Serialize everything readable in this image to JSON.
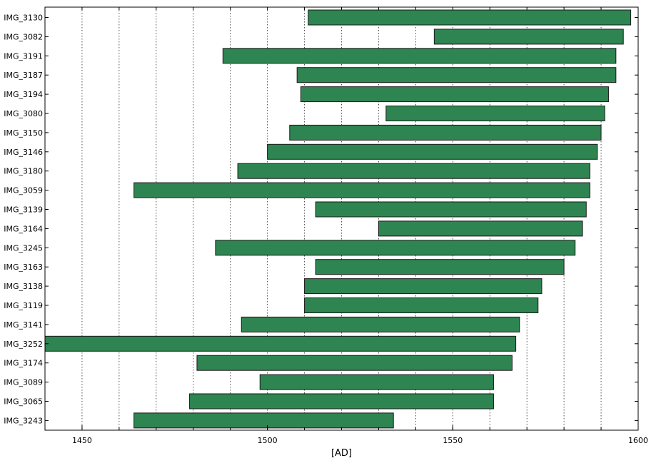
{
  "chart_data": {
    "type": "bar",
    "orientation": "horizontal",
    "xlabel": "[AD]",
    "ylabel": "",
    "title": "",
    "xlim": [
      1440,
      1600
    ],
    "xticks": [
      1450,
      1500,
      1550,
      1600
    ],
    "minor_gridlines": [
      1450,
      1460,
      1470,
      1480,
      1490,
      1500,
      1510,
      1520,
      1530,
      1540,
      1550,
      1560,
      1570,
      1580,
      1590
    ],
    "grid": "dotted vertical",
    "bar_color": "#2e8551",
    "bar_edge_color": "#1a1a1a",
    "bars": [
      {
        "label": "IMG_3130",
        "start": 1511,
        "end": 1598
      },
      {
        "label": "IMG_3082",
        "start": 1545,
        "end": 1596
      },
      {
        "label": "IMG_3191",
        "start": 1488,
        "end": 1594
      },
      {
        "label": "IMG_3187",
        "start": 1508,
        "end": 1594
      },
      {
        "label": "IMG_3194",
        "start": 1509,
        "end": 1592
      },
      {
        "label": "IMG_3080",
        "start": 1532,
        "end": 1591
      },
      {
        "label": "IMG_3150",
        "start": 1506,
        "end": 1590
      },
      {
        "label": "IMG_3146",
        "start": 1500,
        "end": 1589
      },
      {
        "label": "IMG_3180",
        "start": 1492,
        "end": 1587
      },
      {
        "label": "IMG_3059",
        "start": 1464,
        "end": 1587
      },
      {
        "label": "IMG_3139",
        "start": 1513,
        "end": 1586
      },
      {
        "label": "IMG_3164",
        "start": 1530,
        "end": 1585
      },
      {
        "label": "IMG_3245",
        "start": 1486,
        "end": 1583
      },
      {
        "label": "IMG_3163",
        "start": 1513,
        "end": 1580
      },
      {
        "label": "IMG_3138",
        "start": 1510,
        "end": 1574
      },
      {
        "label": "IMG_3119",
        "start": 1510,
        "end": 1573
      },
      {
        "label": "IMG_3141",
        "start": 1493,
        "end": 1568
      },
      {
        "label": "IMG_3252",
        "start": 1440,
        "end": 1567
      },
      {
        "label": "IMG_3174",
        "start": 1481,
        "end": 1566
      },
      {
        "label": "IMG_3089",
        "start": 1498,
        "end": 1561
      },
      {
        "label": "IMG_3065",
        "start": 1479,
        "end": 1561
      },
      {
        "label": "IMG_3243",
        "start": 1464,
        "end": 1534
      }
    ]
  }
}
